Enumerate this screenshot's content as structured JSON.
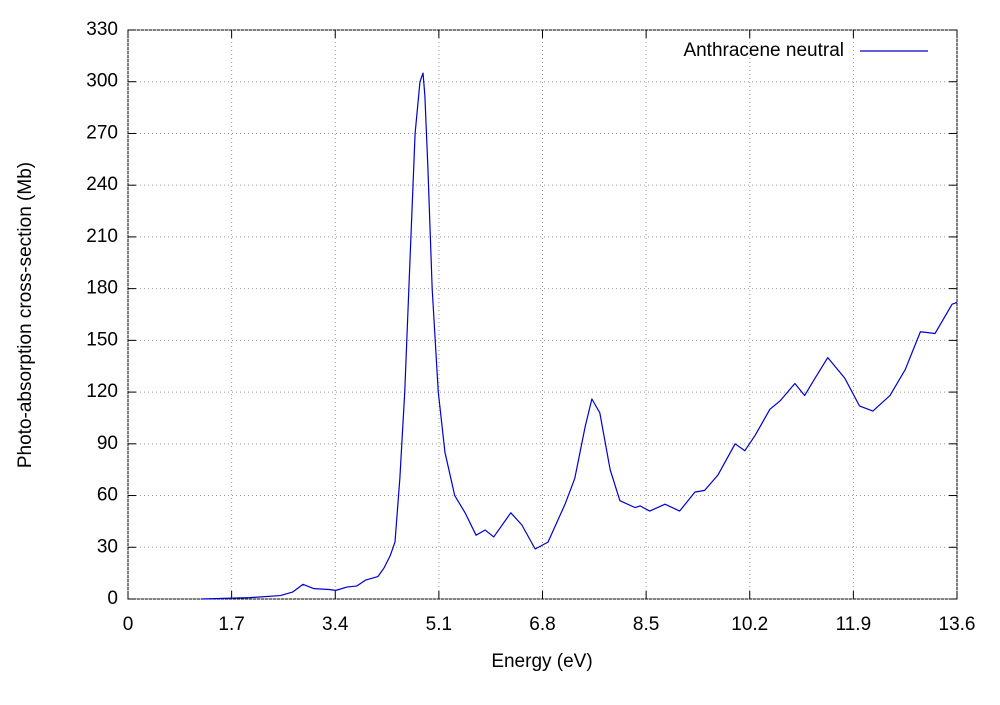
{
  "chart_data": {
    "type": "line",
    "xlabel": "Energy (eV)",
    "ylabel": "Photo-absorption cross-section (Mb)",
    "xlim": [
      0,
      13.6
    ],
    "ylim": [
      0,
      330
    ],
    "xticks": [
      0,
      1.7,
      3.4,
      5.1,
      6.8,
      8.5,
      10.2,
      11.9,
      13.6
    ],
    "yticks": [
      0,
      30,
      60,
      90,
      120,
      150,
      180,
      210,
      240,
      270,
      300,
      330
    ],
    "grid": true,
    "legend": "upper right",
    "series": [
      {
        "name": "Anthracene neutral",
        "color": "#0000cc",
        "x": [
          1.2,
          1.5,
          2.0,
          2.5,
          2.7,
          2.87,
          3.05,
          3.3,
          3.41,
          3.6,
          3.75,
          3.9,
          4.1,
          4.2,
          4.3,
          4.38,
          4.46,
          4.54,
          4.63,
          4.71,
          4.79,
          4.84,
          4.87,
          4.92,
          4.99,
          5.09,
          5.2,
          5.36,
          5.53,
          5.71,
          5.86,
          6.0,
          6.28,
          6.46,
          6.68,
          6.89,
          7.17,
          7.33,
          7.5,
          7.61,
          7.74,
          7.91,
          8.07,
          8.32,
          8.4,
          8.56,
          8.81,
          9.05,
          9.3,
          9.46,
          9.68,
          9.96,
          10.12,
          10.29,
          10.53,
          10.7,
          10.94,
          11.1,
          11.27,
          11.48,
          11.76,
          12.0,
          12.22,
          12.5,
          12.75,
          13.0,
          13.24,
          13.52,
          13.6
        ],
        "values": [
          0,
          0.3,
          0.8,
          2,
          4,
          8.5,
          6,
          5.5,
          5,
          7,
          7.5,
          11,
          13,
          18,
          25,
          33,
          70,
          120,
          200,
          270,
          300,
          305,
          292,
          250,
          180,
          120,
          85,
          60,
          50,
          37,
          40,
          36,
          50,
          43,
          29,
          33,
          55,
          70,
          100,
          116,
          108,
          75,
          57,
          53,
          54,
          51,
          55,
          51,
          62,
          63,
          72,
          90,
          86,
          95,
          110,
          115,
          125,
          118,
          128,
          140,
          128,
          112,
          109,
          118,
          133,
          155,
          154,
          171,
          172
        ]
      }
    ]
  }
}
